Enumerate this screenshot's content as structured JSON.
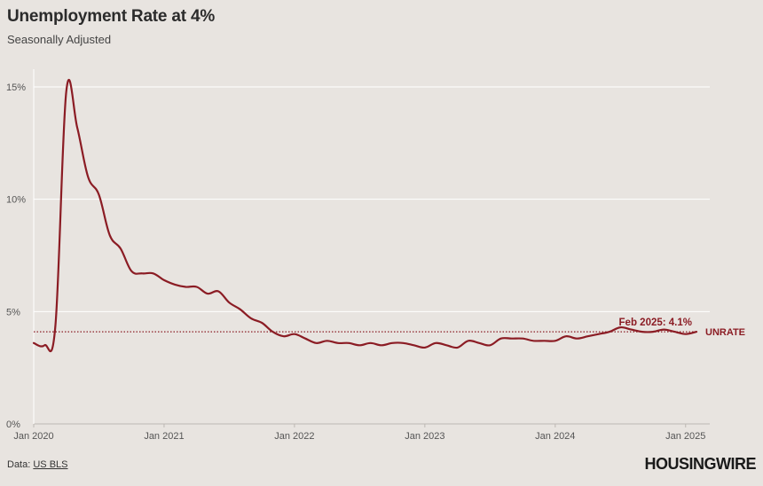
{
  "header": {
    "title": "Unemployment Rate at 4%",
    "subtitle": "Seasonally Adjusted"
  },
  "footer": {
    "source_prefix": "Data: ",
    "source_link": "US BLS",
    "logo": "HOUSINGWIRE"
  },
  "colors": {
    "line": "#8b1c24",
    "grid": "#ffffff",
    "axis_text": "#555555",
    "background": "#e8e4e0"
  },
  "chart_data": {
    "type": "line",
    "title": "Unemployment Rate at 4%",
    "subtitle": "Seasonally Adjusted",
    "ylim": [
      0,
      15
    ],
    "yticks": [
      0,
      5,
      10,
      15
    ],
    "ytick_labels": [
      "0%",
      "5%",
      "10%",
      "15%"
    ],
    "xticks": [
      "2020-01",
      "2021-01",
      "2022-01",
      "2023-01",
      "2024-01",
      "2025-01"
    ],
    "xtick_labels": [
      "Jan 2020",
      "Jan 2021",
      "Jan 2022",
      "Jan 2023",
      "Jan 2024",
      "Jan 2025"
    ],
    "grid": true,
    "reference_line": {
      "value": 4.1,
      "style": "dotted"
    },
    "annotation": "Feb 2025: 4.1%",
    "series": [
      {
        "name": "UNRATE",
        "x": [
          "2020-01",
          "2020-02",
          "2020-03",
          "2020-04",
          "2020-05",
          "2020-06",
          "2020-07",
          "2020-08",
          "2020-09",
          "2020-10",
          "2020-11",
          "2020-12",
          "2021-01",
          "2021-02",
          "2021-03",
          "2021-04",
          "2021-05",
          "2021-06",
          "2021-07",
          "2021-08",
          "2021-09",
          "2021-10",
          "2021-11",
          "2021-12",
          "2022-01",
          "2022-02",
          "2022-03",
          "2022-04",
          "2022-05",
          "2022-06",
          "2022-07",
          "2022-08",
          "2022-09",
          "2022-10",
          "2022-11",
          "2022-12",
          "2023-01",
          "2023-02",
          "2023-03",
          "2023-04",
          "2023-05",
          "2023-06",
          "2023-07",
          "2023-08",
          "2023-09",
          "2023-10",
          "2023-11",
          "2023-12",
          "2024-01",
          "2024-02",
          "2024-03",
          "2024-04",
          "2024-05",
          "2024-06",
          "2024-07",
          "2024-08",
          "2024-09",
          "2024-10",
          "2024-11",
          "2024-12",
          "2025-01",
          "2025-02"
        ],
        "values": [
          3.6,
          3.5,
          4.4,
          14.8,
          13.2,
          11.0,
          10.2,
          8.4,
          7.8,
          6.8,
          6.7,
          6.7,
          6.4,
          6.2,
          6.1,
          6.1,
          5.8,
          5.9,
          5.4,
          5.1,
          4.7,
          4.5,
          4.1,
          3.9,
          4.0,
          3.8,
          3.6,
          3.7,
          3.6,
          3.6,
          3.5,
          3.6,
          3.5,
          3.6,
          3.6,
          3.5,
          3.4,
          3.6,
          3.5,
          3.4,
          3.7,
          3.6,
          3.5,
          3.8,
          3.8,
          3.8,
          3.7,
          3.7,
          3.7,
          3.9,
          3.8,
          3.9,
          4.0,
          4.1,
          4.3,
          4.2,
          4.1,
          4.1,
          4.2,
          4.1,
          4.0,
          4.1
        ]
      }
    ]
  }
}
